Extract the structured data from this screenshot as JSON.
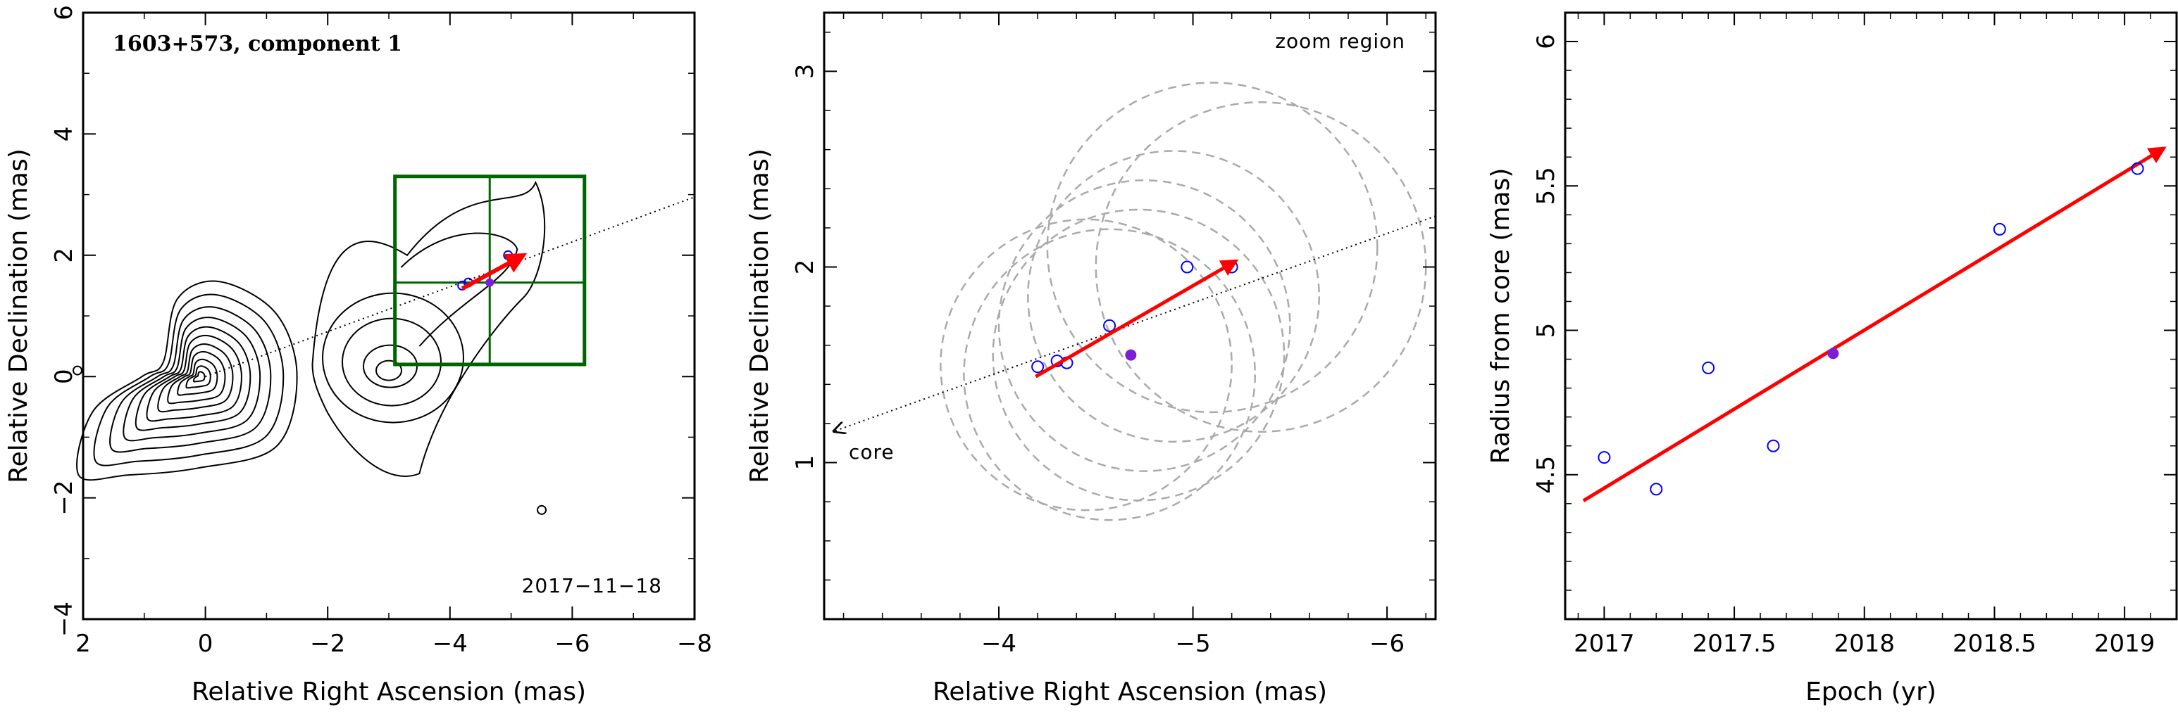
{
  "chart_data": [
    {
      "type": "contour",
      "title": "1603+573, component 1",
      "date_label": "2017−11−18",
      "xlabel": "Relative Right Ascension (mas)",
      "ylabel": "Relative Declination (mas)",
      "xlim": [
        2,
        -8
      ],
      "ylim": [
        -4,
        6
      ],
      "x_ticks": [
        2,
        0,
        -2,
        -4,
        -6,
        -8
      ],
      "x_tick_labels": [
        "2",
        "0",
        "−2",
        "−4",
        "−6",
        "−8"
      ],
      "y_ticks": [
        -4,
        -2,
        0,
        2,
        4,
        6
      ],
      "y_tick_labels": [
        "−4",
        "−2",
        "0",
        "2",
        "4",
        "6"
      ],
      "core": [
        0,
        0
      ],
      "zoom_box": {
        "x": [
          -3.1,
          -6.2
        ],
        "y": [
          0.2,
          3.3
        ],
        "grid_x": -4.65,
        "grid_y": 1.55
      },
      "motion_vector": {
        "from": [
          -4.2,
          1.45
        ],
        "to": [
          -5.2,
          2.0
        ]
      },
      "trajectory_line": {
        "from": [
          0,
          0
        ],
        "to": [
          -8,
          2.96
        ]
      },
      "points_open": [
        [
          -4.2,
          1.5
        ],
        [
          -4.3,
          1.55
        ],
        [
          -4.95,
          2.0
        ]
      ],
      "point_filled": [
        -4.65,
        1.55
      ],
      "colors": {
        "contour": "#000000",
        "box": "#006400",
        "arrow": "#ff0000",
        "open_point": "#0000ff",
        "filled_point": "#7b1fd6"
      }
    },
    {
      "type": "scatter",
      "annotation": "zoom region",
      "core_label": "core",
      "xlabel": "Relative Right Ascension (mas)",
      "ylabel": "Relative Declination (mas)",
      "xlim": [
        -3.1,
        -6.25
      ],
      "ylim": [
        0.2,
        3.3
      ],
      "x_ticks": [
        -4,
        -5,
        -6
      ],
      "x_tick_labels": [
        "−4",
        "−5",
        "−6"
      ],
      "y_ticks": [
        1,
        2,
        3
      ],
      "y_tick_labels": [
        "1",
        "2",
        "3"
      ],
      "points_open": [
        [
          -4.2,
          1.49
        ],
        [
          -4.3,
          1.52
        ],
        [
          -4.35,
          1.51
        ],
        [
          -4.57,
          1.7
        ],
        [
          -4.97,
          2.0
        ],
        [
          -5.2,
          2.0
        ]
      ],
      "point_filled": [
        -4.68,
        1.55
      ],
      "motion_vector": {
        "from": [
          -4.19,
          1.44
        ],
        "to": [
          -5.22,
          2.03
        ]
      },
      "trajectory_line": {
        "from": [
          -3.15,
          1.16
        ],
        "to": [
          -6.25,
          2.26
        ]
      },
      "beam_circles": [
        {
          "cx": -4.45,
          "cy": 1.5,
          "r": 0.75
        },
        {
          "cx": -4.57,
          "cy": 1.45,
          "r": 0.75
        },
        {
          "cx": -4.72,
          "cy": 1.55,
          "r": 0.75
        },
        {
          "cx": -4.75,
          "cy": 1.7,
          "r": 0.75
        },
        {
          "cx": -4.9,
          "cy": 1.85,
          "r": 0.75
        },
        {
          "cx": -5.1,
          "cy": 2.1,
          "r": 0.85
        },
        {
          "cx": -5.35,
          "cy": 2.0,
          "r": 0.85
        }
      ],
      "colors": {
        "circles": "#aaaaaa",
        "arrow": "#ff0000",
        "open_point": "#0000ff",
        "filled_point": "#7b1fd6"
      }
    },
    {
      "type": "scatter",
      "xlabel": "Epoch (yr)",
      "ylabel": "Radius from core (mas)",
      "xlim": [
        2016.85,
        2019.2
      ],
      "ylim": [
        4.0,
        6.1
      ],
      "x_ticks": [
        2017,
        2017.5,
        2018,
        2018.5,
        2019
      ],
      "x_tick_labels": [
        "2017",
        "2017.5",
        "2018",
        "2018.5",
        "2019"
      ],
      "y_ticks": [
        4.5,
        5,
        5.5,
        6
      ],
      "y_tick_labels": [
        "4.5",
        "5",
        "5.5",
        "6"
      ],
      "x": [
        2017.0,
        2017.2,
        2017.4,
        2017.65,
        2018.52,
        2019.05
      ],
      "y": [
        4.56,
        4.45,
        4.87,
        4.6,
        5.35,
        5.56
      ],
      "point_filled": [
        2017.88,
        4.92
      ],
      "fit_line": {
        "from": [
          2016.92,
          4.41
        ],
        "to": [
          2019.15,
          5.63
        ]
      },
      "colors": {
        "fit": "#ff0000",
        "open_point": "#0000ff",
        "filled_point": "#7b1fd6"
      }
    }
  ]
}
